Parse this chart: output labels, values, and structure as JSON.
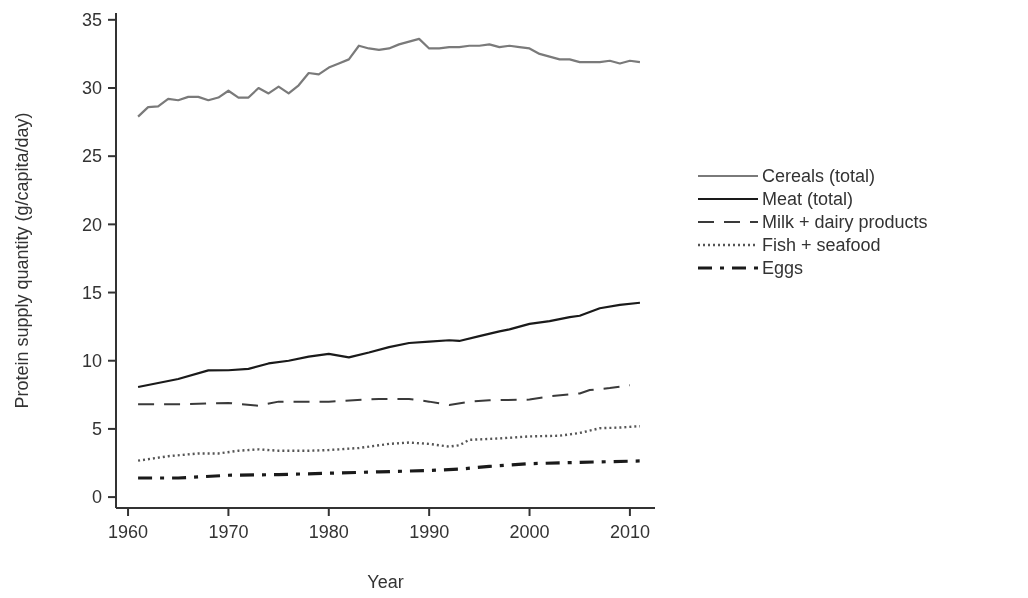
{
  "chart_data": {
    "type": "line",
    "xlabel": "Year",
    "ylabel": "Protein supply quantity (g/capita/day)",
    "xlim": [
      1958.8,
      2012.5
    ],
    "ylim": [
      -0.8,
      35.5
    ],
    "xticks": [
      1960,
      1970,
      1980,
      1990,
      2000,
      2010
    ],
    "yticks": [
      0,
      5,
      10,
      15,
      20,
      25,
      30,
      35
    ],
    "legend": "right",
    "grid": false,
    "series": [
      {
        "name": "Cereals (total)",
        "color": "#7a7a7a",
        "line_style": "solid",
        "x": [
          1961,
          1962,
          1963,
          1964,
          1965,
          1966,
          1967,
          1968,
          1969,
          1970,
          1971,
          1972,
          1973,
          1974,
          1975,
          1976,
          1977,
          1978,
          1979,
          1980,
          1981,
          1982,
          1983,
          1984,
          1985,
          1986,
          1987,
          1988,
          1989,
          1990,
          1991,
          1992,
          1993,
          1994,
          1995,
          1996,
          1997,
          1998,
          1999,
          2000,
          2001,
          2002,
          2003,
          2004,
          2005,
          2006,
          2007,
          2008,
          2009,
          2010,
          2011
        ],
        "values": [
          27.9,
          28.6,
          28.65,
          29.2,
          29.1,
          29.35,
          29.35,
          29.1,
          29.3,
          29.8,
          29.3,
          29.3,
          30.0,
          29.6,
          30.1,
          29.6,
          30.2,
          31.1,
          31.0,
          31.5,
          31.8,
          32.1,
          33.1,
          32.9,
          32.8,
          32.9,
          33.2,
          33.4,
          33.6,
          32.9,
          32.9,
          33.0,
          33.0,
          33.1,
          33.1,
          33.2,
          33.0,
          33.1,
          33.0,
          32.9,
          32.5,
          32.3,
          32.1,
          32.1,
          31.9,
          31.9,
          31.9,
          32.0,
          31.8,
          32.0,
          31.9
        ]
      },
      {
        "name": "Meat (total)",
        "color": "#1a1a1a",
        "line_style": "solid",
        "x": [
          1961,
          1965,
          1968,
          1970,
          1972,
          1974,
          1976,
          1978,
          1980,
          1982,
          1984,
          1986,
          1988,
          1990,
          1992,
          1993,
          1995,
          1997,
          1998,
          2000,
          2002,
          2004,
          2005,
          2007,
          2009,
          2011
        ],
        "values": [
          8.07,
          8.66,
          9.29,
          9.3,
          9.4,
          9.8,
          10.0,
          10.3,
          10.5,
          10.25,
          10.6,
          11.0,
          11.3,
          11.4,
          11.5,
          11.45,
          11.8,
          12.15,
          12.3,
          12.7,
          12.9,
          13.2,
          13.3,
          13.85,
          14.1,
          14.25
        ]
      },
      {
        "name": "Milk + dairy products",
        "color": "#3a3a3a",
        "line_style": "dashed",
        "x": [
          1961,
          1965,
          1970,
          1973,
          1975,
          1980,
          1985,
          1988,
          1990,
          1992,
          1994,
          1996,
          2000,
          2002,
          2005,
          2006,
          2008,
          2010
        ],
        "values": [
          6.8,
          6.8,
          6.9,
          6.7,
          7.0,
          7.0,
          7.2,
          7.2,
          7.0,
          6.75,
          7.0,
          7.1,
          7.15,
          7.4,
          7.6,
          7.85,
          8.0,
          8.2
        ]
      },
      {
        "name": "Fish + seafood",
        "color": "#555555",
        "line_style": "dotted",
        "x": [
          1961,
          1964,
          1967,
          1969,
          1971,
          1973,
          1975,
          1978,
          1980,
          1983,
          1986,
          1988,
          1990,
          1992,
          1993,
          1994,
          1997,
          2000,
          2003,
          2005,
          2007,
          2009,
          2011
        ],
        "values": [
          2.67,
          3.0,
          3.2,
          3.2,
          3.4,
          3.5,
          3.4,
          3.4,
          3.45,
          3.6,
          3.9,
          4.0,
          3.9,
          3.7,
          3.8,
          4.2,
          4.3,
          4.45,
          4.5,
          4.7,
          5.05,
          5.1,
          5.2
        ]
      },
      {
        "name": "Eggs",
        "color": "#1a1a1a",
        "line_style": "dashdot",
        "x": [
          1961,
          1965,
          1970,
          1975,
          1980,
          1985,
          1990,
          1993,
          1996,
          2000,
          2005,
          2011
        ],
        "values": [
          1.4,
          1.4,
          1.6,
          1.65,
          1.75,
          1.85,
          1.95,
          2.05,
          2.25,
          2.45,
          2.55,
          2.65
        ]
      }
    ]
  }
}
